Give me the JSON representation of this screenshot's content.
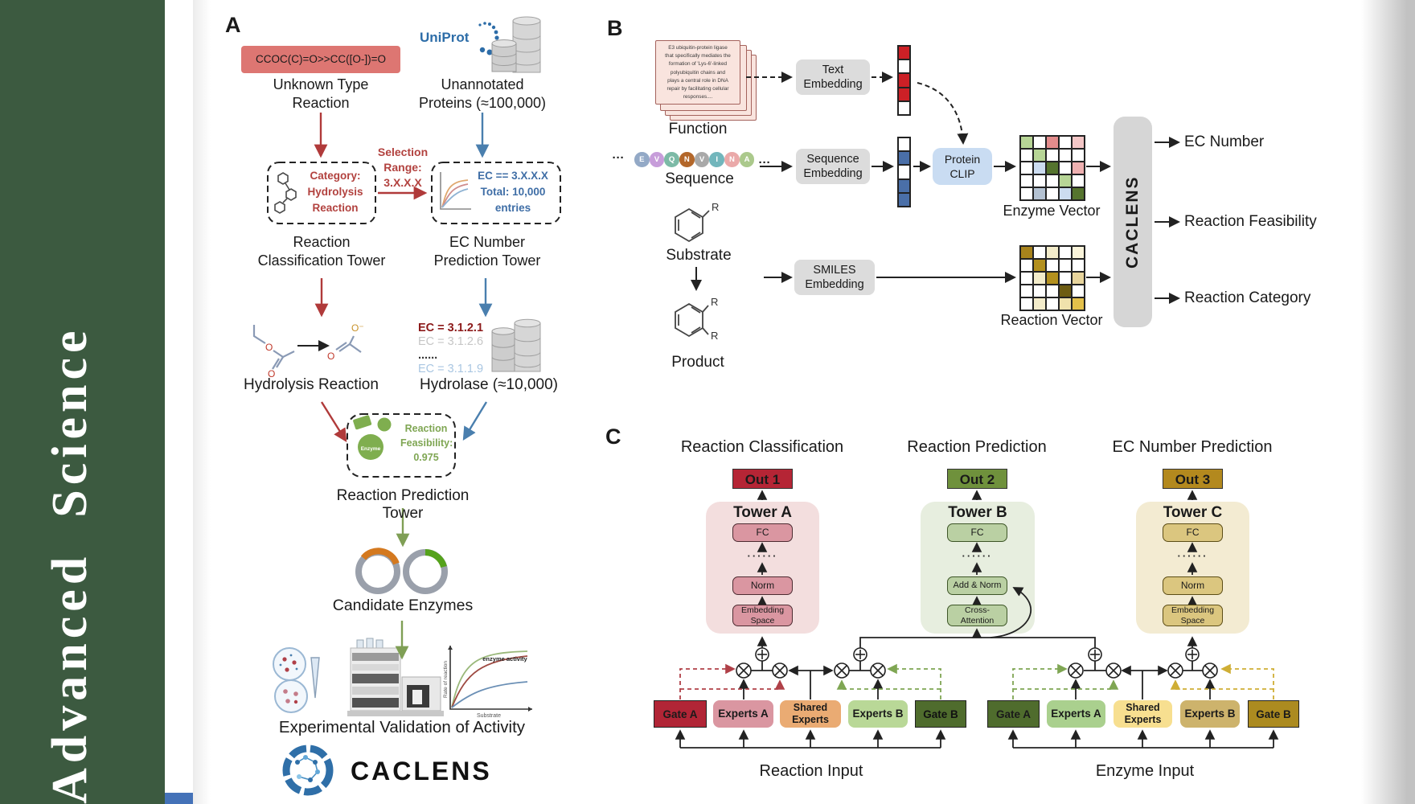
{
  "sidebar": {
    "journal": "Advanced  Science",
    "bg": "#3c5a40"
  },
  "panelA": {
    "label": "A",
    "smiles": "CCOC(C)=O>>CC([O-])=O",
    "unknown": [
      "Unknown Type",
      "Reaction"
    ],
    "uniprot": "UniProt",
    "unannotated": [
      "Unannotated",
      "Proteins (≈100,000)"
    ],
    "selection": [
      "Selection",
      "Range:",
      "3.X.X.X"
    ],
    "category": [
      "Category:",
      "Hydrolysis",
      "Reaction"
    ],
    "ec_box": [
      "EC == 3.X.X.X",
      "Total: 10,000",
      "entries"
    ],
    "tower1": [
      "Reaction",
      "Classification Tower"
    ],
    "tower2": [
      "EC Number",
      "Prediction Tower"
    ],
    "ec_list": [
      {
        "text": "EC = 3.1.2.1",
        "color": "#8c1a1a"
      },
      {
        "text": "EC = 3.1.2.6",
        "color": "#c6c6c6"
      },
      {
        "text": "......",
        "color": "#333333"
      },
      {
        "text": "EC = 3.1.1.9",
        "color": "#a9c6e2"
      }
    ],
    "hydrolysis": "Hydrolysis Reaction",
    "hydrolase": "Hydrolase (≈10,000)",
    "enzyme": "Enzyme",
    "feasibility": [
      "Reaction",
      "Feasibility:",
      "0.975"
    ],
    "rpt": "Reaction Prediction Tower",
    "candidates": "Candidate Enzymes",
    "kinetics": {
      "label": "enzyme activity",
      "ylabel": "Rate of reaction",
      "xlabel": "Substrate"
    },
    "validation": "Experimental Validation of Activity",
    "logo": "CACLENS"
  },
  "panelB": {
    "label": "B",
    "function_card_lines": [
      "E3 ubiquitin-protein ligase",
      "that specifically mediates the",
      "formation of 'Lys-6'-linked",
      "polyubiquitin chains and",
      "plays a central role in DNA",
      "repair by facilitating cellular",
      "responses...."
    ],
    "function_label": "Function",
    "dots": "···",
    "sequence_circles": [
      {
        "letter": "E",
        "color": "#93a9c6"
      },
      {
        "letter": "V",
        "color": "#c79dda"
      },
      {
        "letter": "Q",
        "color": "#7cbaa6"
      },
      {
        "letter": "N",
        "color": "#b3672a"
      },
      {
        "letter": "V",
        "color": "#a9a9a9"
      },
      {
        "letter": "I",
        "color": "#72b6bc"
      },
      {
        "letter": "N",
        "color": "#eaa9a9"
      },
      {
        "letter": "A",
        "color": "#abc98c"
      }
    ],
    "sequence_label": "Sequence",
    "substrate_label": "Substrate",
    "product_label": "Product",
    "r_label": "R",
    "text_embedding": [
      "Text",
      "Embedding"
    ],
    "sequence_embedding": [
      "Sequence",
      "Embedding"
    ],
    "smiles_embedding": [
      "SMILES",
      "Embedding"
    ],
    "protein_clip": [
      "Protein",
      "CLIP"
    ],
    "text_vector": [
      "#cc2026",
      "#ffffff",
      "#cc2026",
      "#cc2026",
      "#ffffff"
    ],
    "seq_vector": [
      "#ffffff",
      "#4a6fa8",
      "#ffffff",
      "#4a6fa8",
      "#4a6fa8"
    ],
    "enzyme_vector_label": "Enzyme Vector",
    "reaction_vector_label": "Reaction Vector",
    "enzyme_vector_grid": [
      "#b7d596",
      "#ffffff",
      "#e38c8c",
      "#ffffff",
      "#f3c6c6",
      "#ffffff",
      "#b7d596",
      "#ffffff",
      "#ffffff",
      "#ffffff",
      "#ffffff",
      "#ccdcf0",
      "#55742e",
      "#ffffff",
      "#eeb0b0",
      "#ffffff",
      "#ffffff",
      "#ffffff",
      "#b7d596",
      "#ffffff",
      "#ffffff",
      "#b4c2d2",
      "#ffffff",
      "#ccdcf0",
      "#55742e"
    ],
    "reaction_vector_grid": [
      "#a8831c",
      "#ffffff",
      "#f3ecca",
      "#ffffff",
      "#faf4da",
      "#ffffff",
      "#b3901e",
      "#ffffff",
      "#ffffff",
      "#ffffff",
      "#ffffff",
      "#f3ecca",
      "#b3901e",
      "#ffffff",
      "#e7d49c",
      "#ffffff",
      "#ffffff",
      "#ffffff",
      "#6d5c12",
      "#ffffff",
      "#ffffff",
      "#f3ecca",
      "#ffffff",
      "#f0e2ac",
      "#e3c04a"
    ],
    "caclens": "CACLENS",
    "outputs": [
      "EC Number",
      "Reaction Feasibility",
      "Reaction Category"
    ]
  },
  "panelC": {
    "label": "C",
    "titles": [
      "Reaction Classification",
      "Reaction Prediction",
      "EC Number Prediction"
    ],
    "outs": [
      "Out 1",
      "Out 2",
      "Out 3"
    ],
    "dots": "······",
    "towers": [
      {
        "name": "Tower A",
        "fc": "FC",
        "mid": "Norm",
        "bottom": [
          "Embedding",
          "Space"
        ]
      },
      {
        "name": "Tower B",
        "fc": "FC",
        "mid": "Add & Norm",
        "bottom": [
          "Cross-",
          "Attention"
        ]
      },
      {
        "name": "Tower C",
        "fc": "FC",
        "mid": "Norm",
        "bottom": [
          "Embedding",
          "Space"
        ]
      }
    ],
    "moe_left": {
      "gate_a": "Gate A",
      "experts_a": "Experts A",
      "shared": [
        "Shared",
        "Experts"
      ],
      "experts_b": "Experts B",
      "gate_b": "Gate B",
      "input": "Reaction Input"
    },
    "moe_right": {
      "gate_a": "Gate A",
      "experts_a": "Experts A",
      "shared": [
        "Shared",
        "Experts"
      ],
      "experts_b": "Experts B",
      "gate_b": "Gate B",
      "input": "Enzyme Input"
    }
  }
}
